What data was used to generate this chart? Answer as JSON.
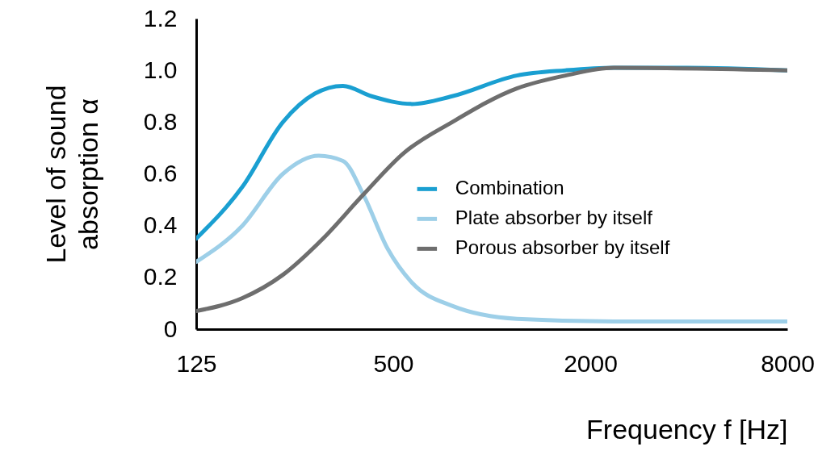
{
  "chart_data": {
    "type": "line",
    "xlabel": "Frequency f [Hz]",
    "ylabel": "Level of sound absorption α",
    "series": [
      {
        "name": "Combination",
        "color": "#1a9fd1",
        "x": [
          125,
          173,
          230,
          288,
          351,
          429,
          570,
          757,
          1193,
          1680,
          2360,
          3935,
          8000
        ],
        "values": [
          0.35,
          0.55,
          0.8,
          0.91,
          0.94,
          0.9,
          0.87,
          0.9,
          0.98,
          1.0,
          1.01,
          1.01,
          1.0
        ]
      },
      {
        "name": "Plate absorber by itself",
        "color": "#9dcfe8",
        "x": [
          125,
          173,
          230,
          296,
          351,
          405,
          481,
          570,
          757,
          1193,
          2360,
          8000
        ],
        "values": [
          0.26,
          0.4,
          0.6,
          0.67,
          0.65,
          0.52,
          0.31,
          0.18,
          0.09,
          0.04,
          0.03,
          0.03
        ]
      },
      {
        "name": "Porous absorber by itself",
        "color": "#6e6e6e",
        "x": [
          125,
          173,
          230,
          305,
          405,
          538,
          757,
          1193,
          1680,
          2360,
          8000
        ],
        "values": [
          0.07,
          0.12,
          0.21,
          0.35,
          0.52,
          0.68,
          0.8,
          0.93,
          0.98,
          1.01,
          1.0
        ]
      }
    ],
    "xlim": [
      125,
      8000
    ],
    "xticks": [
      125,
      500,
      2000,
      8000
    ],
    "log": "x",
    "ylim": [
      0,
      1.2
    ],
    "yticks": [
      0,
      0.2,
      0.4,
      0.6,
      0.8,
      {
        "value": 1,
        "label": "1.0"
      },
      1.2
    ],
    "grid": false,
    "legend": "right",
    "line_style": "solid",
    "marker": "none"
  }
}
